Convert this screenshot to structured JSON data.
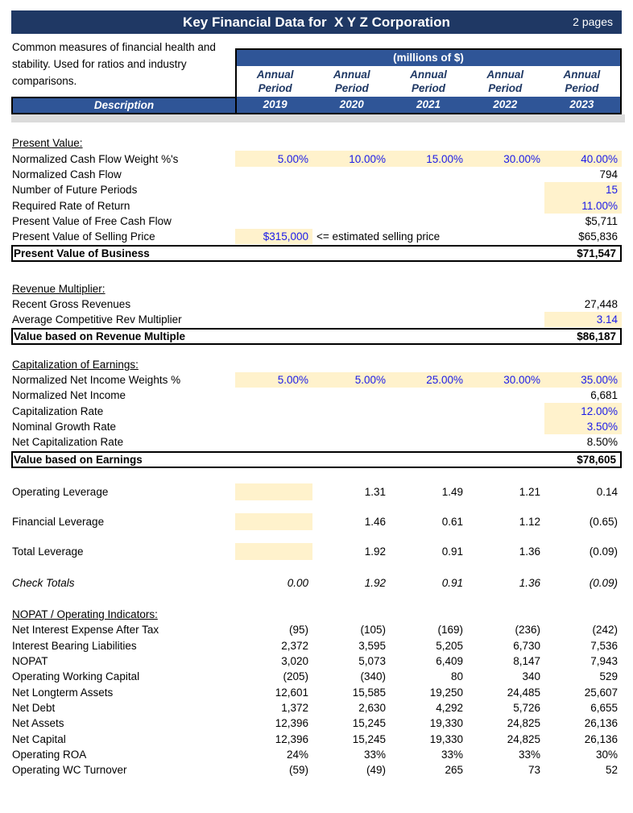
{
  "page": {
    "title": "Key Financial Data for  X Y Z Corporation",
    "pages_label": "2 pages",
    "intro": "Common measures of financial health and stability. Used for ratios and industry comparisons.",
    "units_label": "(millions of $)",
    "period_label_line1": "Annual",
    "period_label_line2": "Period",
    "description_label": "Description",
    "years": [
      "2019",
      "2020",
      "2021",
      "2022",
      "2023"
    ]
  },
  "colors": {
    "title_navy": "#1F3864",
    "band_blue": "#2F5597",
    "highlight_yellow": "#FFF2CC",
    "input_blue": "#1A1AE8",
    "divider_grey": "#DBDBDB"
  },
  "blocks": [
    {
      "type": "heading",
      "text": "Present Value:",
      "mt": 16
    },
    {
      "type": "row",
      "label": "Normalized Cash Flow Weight %'s",
      "cells": [
        {
          "v": "5.00%",
          "blue": 1,
          "hl": 1
        },
        {
          "v": "10.00%",
          "blue": 1,
          "hl": 1
        },
        {
          "v": "15.00%",
          "blue": 1,
          "hl": 1
        },
        {
          "v": "30.00%",
          "blue": 1,
          "hl": 1
        },
        {
          "v": "40.00%",
          "blue": 1,
          "hl": 1
        }
      ]
    },
    {
      "type": "row",
      "label": "Normalized Cash Flow",
      "cells": [
        null,
        null,
        null,
        null,
        {
          "v": "794"
        }
      ]
    },
    {
      "type": "row",
      "label": "Number of Future Periods",
      "cells": [
        null,
        null,
        null,
        null,
        {
          "v": "15",
          "blue": 1,
          "hl": 1
        }
      ]
    },
    {
      "type": "row",
      "label": "Required Rate of Return",
      "cells": [
        null,
        null,
        null,
        null,
        {
          "v": "11.00%",
          "blue": 1,
          "hl": 1
        }
      ]
    },
    {
      "type": "row",
      "label": "Present Value of Free Cash Flow",
      "cells": [
        null,
        null,
        null,
        null,
        {
          "v": "$5,711"
        }
      ]
    },
    {
      "type": "row",
      "label": "Present Value of Selling Price",
      "note": "<= estimated selling price",
      "cells": [
        {
          "v": "$315,000",
          "blue": 1,
          "hl": 1
        },
        null,
        null,
        null,
        {
          "v": "$65,836"
        }
      ]
    },
    {
      "type": "total",
      "label": "Present Value of Business",
      "value": "$71,547"
    },
    {
      "type": "heading",
      "text": "Revenue Multiplier:",
      "mt": 23
    },
    {
      "type": "row",
      "label": "Recent Gross Revenues",
      "cells": [
        null,
        null,
        null,
        null,
        {
          "v": "27,448"
        }
      ]
    },
    {
      "type": "row",
      "label": "Average Competitive Rev Multiplier",
      "cells": [
        null,
        null,
        null,
        null,
        {
          "v": "3.14",
          "blue": 1,
          "hl": 1
        }
      ]
    },
    {
      "type": "total",
      "label": "Value based on Revenue Multiple",
      "value": "$86,187"
    },
    {
      "type": "heading",
      "text": "Capitalization of Earnings:",
      "mt": 14
    },
    {
      "type": "row",
      "label": "Normalized Net Income Weights %",
      "cells": [
        {
          "v": "5.00%",
          "blue": 1,
          "hl": 1
        },
        {
          "v": "5.00%",
          "blue": 1,
          "hl": 1
        },
        {
          "v": "25.00%",
          "blue": 1,
          "hl": 1
        },
        {
          "v": "30.00%",
          "blue": 1,
          "hl": 1
        },
        {
          "v": "35.00%",
          "blue": 1,
          "hl": 1
        }
      ]
    },
    {
      "type": "row",
      "label": "Normalized Net Income",
      "cells": [
        null,
        null,
        null,
        null,
        {
          "v": "6,681"
        }
      ]
    },
    {
      "type": "row",
      "label": "Capitalization Rate",
      "cells": [
        null,
        null,
        null,
        null,
        {
          "v": "12.00%",
          "blue": 1,
          "hl": 1
        }
      ]
    },
    {
      "type": "row",
      "label": "Nominal Growth Rate",
      "cells": [
        null,
        null,
        null,
        null,
        {
          "v": "3.50%",
          "blue": 1,
          "hl": 1
        }
      ]
    },
    {
      "type": "row",
      "label": "Net Capitalization Rate",
      "cells": [
        null,
        null,
        null,
        null,
        {
          "v": "8.50%"
        }
      ]
    },
    {
      "type": "total",
      "label": "Value based on Earnings",
      "value": "$78,605"
    },
    {
      "type": "row",
      "label": "Operating Leverage",
      "lev": 1,
      "mt": 19,
      "cells": [
        {
          "v": "",
          "hl": 1
        },
        {
          "v": "1.31"
        },
        {
          "v": "1.49"
        },
        {
          "v": "1.21"
        },
        {
          "v": "0.14"
        }
      ]
    },
    {
      "type": "row",
      "label": "Financial Leverage",
      "lev": 1,
      "mt": 16,
      "cells": [
        {
          "v": "",
          "hl": 1
        },
        {
          "v": "1.46"
        },
        {
          "v": "0.61"
        },
        {
          "v": "1.12"
        },
        {
          "v": "(0.65)"
        }
      ]
    },
    {
      "type": "row",
      "label": "Total Leverage",
      "lev": 1,
      "mt": 16,
      "cells": [
        {
          "v": "",
          "hl": 1
        },
        {
          "v": "1.92"
        },
        {
          "v": "0.91"
        },
        {
          "v": "1.36"
        },
        {
          "v": "(0.09)"
        }
      ]
    },
    {
      "type": "row",
      "label": "Check Totals",
      "italic": 1,
      "mt": 19,
      "cells": [
        {
          "v": "0.00"
        },
        {
          "v": "1.92"
        },
        {
          "v": "0.91"
        },
        {
          "v": "1.36"
        },
        {
          "v": "(0.09)"
        }
      ]
    },
    {
      "type": "heading",
      "text": "NOPAT / Operating Indicators:",
      "mt": 20
    },
    {
      "type": "row",
      "label": "Net Interest Expense After Tax",
      "cells": [
        {
          "v": "(95)"
        },
        {
          "v": "(105)"
        },
        {
          "v": "(169)"
        },
        {
          "v": "(236)"
        },
        {
          "v": "(242)"
        }
      ]
    },
    {
      "type": "row",
      "label": "Interest Bearing Liabilities",
      "cells": [
        {
          "v": "2,372"
        },
        {
          "v": "3,595"
        },
        {
          "v": "5,205"
        },
        {
          "v": "6,730"
        },
        {
          "v": "7,536"
        }
      ]
    },
    {
      "type": "row",
      "label": "NOPAT",
      "cells": [
        {
          "v": "3,020"
        },
        {
          "v": "5,073"
        },
        {
          "v": "6,409"
        },
        {
          "v": "8,147"
        },
        {
          "v": "7,943"
        }
      ]
    },
    {
      "type": "row",
      "label": "Operating Working Capital",
      "cells": [
        {
          "v": "(205)"
        },
        {
          "v": "(340)"
        },
        {
          "v": "80"
        },
        {
          "v": "340"
        },
        {
          "v": "529"
        }
      ]
    },
    {
      "type": "row",
      "label": "Net Longterm Assets",
      "cells": [
        {
          "v": "12,601"
        },
        {
          "v": "15,585"
        },
        {
          "v": "19,250"
        },
        {
          "v": "24,485"
        },
        {
          "v": "25,607"
        }
      ]
    },
    {
      "type": "row",
      "label": "Net Debt",
      "cells": [
        {
          "v": "1,372"
        },
        {
          "v": "2,630"
        },
        {
          "v": "4,292"
        },
        {
          "v": "5,726"
        },
        {
          "v": "6,655"
        }
      ]
    },
    {
      "type": "row",
      "label": "Net Assets",
      "cells": [
        {
          "v": "12,396"
        },
        {
          "v": "15,245"
        },
        {
          "v": "19,330"
        },
        {
          "v": "24,825"
        },
        {
          "v": "26,136"
        }
      ]
    },
    {
      "type": "row",
      "label": "Net Capital",
      "cells": [
        {
          "v": "12,396"
        },
        {
          "v": "15,245"
        },
        {
          "v": "19,330"
        },
        {
          "v": "24,825"
        },
        {
          "v": "26,136"
        }
      ]
    },
    {
      "type": "row",
      "label": "Operating ROA",
      "cells": [
        {
          "v": "24%"
        },
        {
          "v": "33%"
        },
        {
          "v": "33%"
        },
        {
          "v": "33%"
        },
        {
          "v": "30%"
        }
      ]
    },
    {
      "type": "row",
      "label": "Operating WC Turnover",
      "cells": [
        {
          "v": "(59)"
        },
        {
          "v": "(49)"
        },
        {
          "v": "265"
        },
        {
          "v": "73"
        },
        {
          "v": "52"
        }
      ]
    }
  ]
}
